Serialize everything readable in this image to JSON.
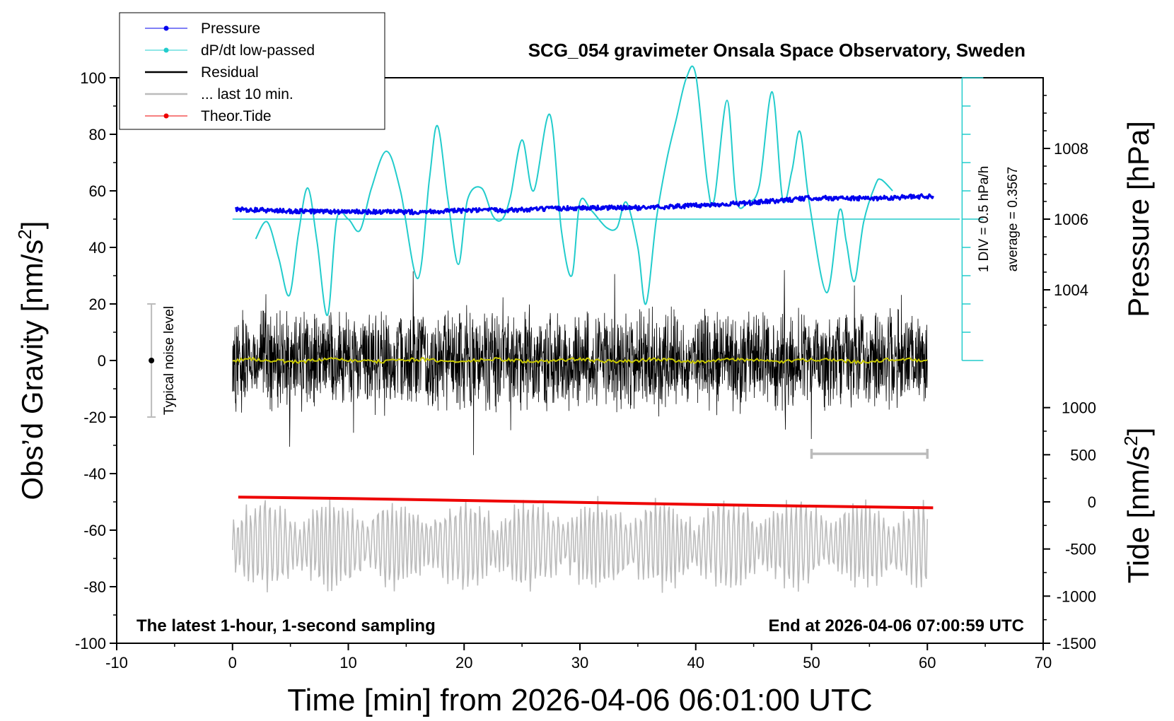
{
  "chart_data": {
    "type": "line",
    "title": "SCG_054 gravimeter Onsala Space Observatory, Sweden",
    "xlabel": "Time [min] from 2026-04-06 06:01:00 UTC",
    "ylabel": "Obs’d Gravity [nm/s",
    "ylabel_sup": "2",
    "ylabel_end": "]",
    "y2label": "Pressure [hPa]",
    "y3label": "Tide [nm/s",
    "y3label_sup": "2",
    "y3label_end": "]",
    "xlim": [
      -10,
      70
    ],
    "ylim": [
      -100,
      100
    ],
    "pressure_axis": {
      "ticks": [
        "1008",
        "1006",
        "1004"
      ]
    },
    "tide_axis": {
      "ticks": [
        "1000",
        "500",
        "0",
        "-500",
        "-1000",
        "-1500"
      ]
    },
    "x_ticks": [
      "-10",
      "0",
      "10",
      "20",
      "30",
      "40",
      "50",
      "60",
      "70"
    ],
    "y_ticks": [
      "100",
      "80",
      "60",
      "40",
      "20",
      "0",
      "-20",
      "-40",
      "-60",
      "-80",
      "-100"
    ],
    "legend": {
      "position": "top-left",
      "items": [
        {
          "label": "Pressure",
          "color": "#0000ee",
          "style": "line-dot"
        },
        {
          "label": "dP/dt low-passed",
          "color": "#22cccc",
          "style": "line-dot"
        },
        {
          "label": "Residual",
          "color": "#000000",
          "style": "line"
        },
        {
          "label": "... last 10 min.",
          "color": "#bbbbbb",
          "style": "line"
        },
        {
          "label": "Theor.Tide",
          "color": "#ee0000",
          "style": "line-dot"
        }
      ]
    },
    "annotations": {
      "bottom_left": "The latest 1-hour, 1-second sampling",
      "bottom_right": "End at 2026-04-06 07:00:59 UTC",
      "noise_label": "Typical noise level",
      "div_label": "1 DIV = 0.5 hPa/h",
      "avg_label": "average = 0.3567"
    },
    "noise_bar": {
      "x": -7,
      "center": 0,
      "low": -20,
      "high": 20
    },
    "last10_bar": {
      "x_start": 50,
      "x_end": 60,
      "y": -33
    },
    "series": [
      {
        "name": "Pressure",
        "color": "#0000ee",
        "x": [
          0.3,
          5,
          10,
          15,
          20,
          25,
          30,
          35,
          40,
          45,
          50,
          55,
          60.5
        ],
        "y": [
          53.5,
          52.8,
          52.6,
          52.5,
          53.0,
          53.3,
          54.0,
          54.0,
          54.8,
          55.8,
          57.5,
          57.3,
          58.2
        ]
      },
      {
        "name": "dP/dt low-passed",
        "color": "#22cccc",
        "x": [
          2.0,
          3.0,
          4.0,
          4.9,
          5.7,
          6.5,
          7.3,
          8.2,
          9.0,
          10.0,
          11.0,
          12.0,
          13.3,
          14.5,
          16.0,
          17.0,
          17.7,
          18.6,
          19.5,
          20.3,
          21.5,
          22.5,
          23.3,
          24.0,
          25.0,
          26.0,
          27.4,
          28.4,
          29.3,
          30.0,
          31.0,
          32.3,
          33.2,
          34.0,
          35.0,
          35.7,
          36.6,
          37.5,
          38.3,
          39.2,
          40.0,
          41.0,
          41.6,
          42.7,
          43.5,
          44.5,
          45.5,
          46.6,
          47.5,
          48.3,
          49.0,
          49.8,
          51.3,
          52.4,
          53.0,
          53.7,
          54.5,
          55.5,
          56.0,
          57.0
        ],
        "y": [
          43,
          49,
          36,
          23,
          45,
          61,
          42,
          16,
          50,
          50,
          46,
          61,
          74,
          60,
          29,
          64,
          83,
          57,
          34,
          57,
          61,
          51,
          50,
          58,
          78,
          60,
          87,
          46,
          30,
          56,
          53,
          47,
          47,
          56,
          40,
          20,
          50,
          71,
          85,
          100,
          101,
          63,
          57,
          92,
          57,
          56,
          62,
          95,
          57,
          67,
          81,
          56,
          24,
          53,
          42,
          28,
          49,
          62,
          64,
          60
        ]
      },
      {
        "name": "Residual",
        "color": "#000000",
        "amplitude": 20,
        "x_start": 0,
        "x_end": 60
      },
      {
        "name": "... last 10 min.",
        "color": "#bbbbbb",
        "center": -65,
        "amplitude": 15,
        "x_start": 0,
        "x_end": 60
      },
      {
        "name": "Theor.Tide",
        "color": "#ee0000",
        "x": [
          0.5,
          10,
          20,
          30,
          40,
          50,
          60.5
        ],
        "y": [
          -48.3,
          -48.8,
          -49.5,
          -50.2,
          -50.9,
          -51.5,
          -52.1
        ]
      }
    ]
  }
}
